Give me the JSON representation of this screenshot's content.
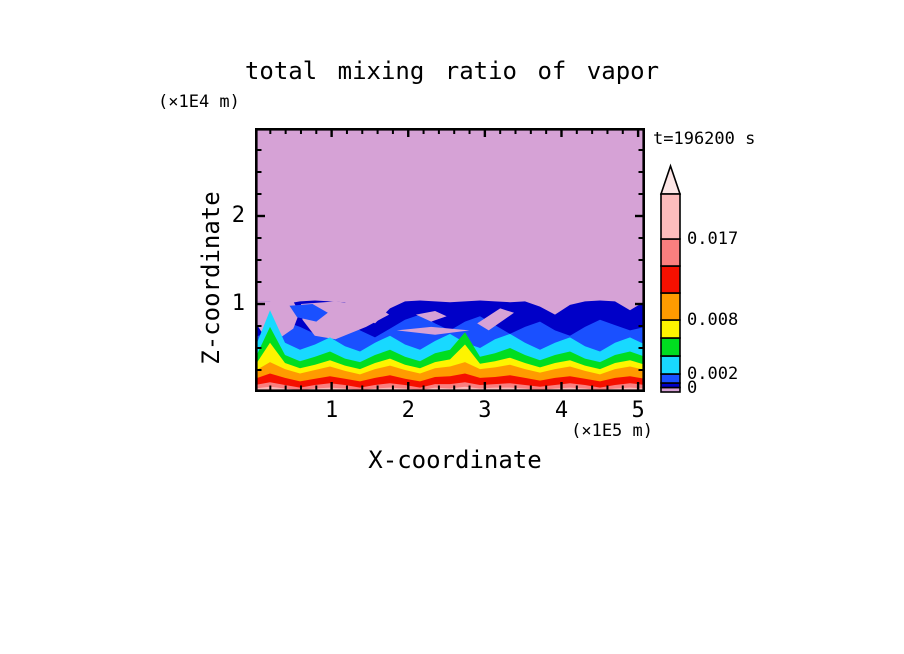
{
  "header": {
    "title": "total mixing ratio of vapor",
    "time_annotation": "t=196200 s"
  },
  "chart_data": {
    "type": "filled_contour",
    "title": "total mixing ratio of vapor",
    "time": "t=196200 s",
    "x_axis": {
      "label": "X-coordinate",
      "unit": "(×1E5 m)",
      "range": [
        0,
        5.09
      ],
      "major_ticks": [
        1,
        2,
        3,
        4,
        5
      ],
      "minor_step": 0.2
    },
    "z_axis": {
      "label": "Z-coordinate",
      "unit": "(×1E4 m)",
      "range": [
        0,
        3.0
      ],
      "major_ticks": [
        1,
        2
      ],
      "minor_step": 0.25
    },
    "colorbar": {
      "max": 0.022,
      "levels": [
        0,
        0.0005,
        0.001,
        0.002,
        0.004,
        0.006,
        0.008,
        0.011,
        0.014,
        0.017,
        0.022
      ],
      "colors": [
        "#d6a2d6",
        "#0000c8",
        "#1a50ff",
        "#18d9ff",
        "#00dd20",
        "#fef400",
        "#ff9b00",
        "#f51000",
        "#fa7f7f",
        "#fdbcbc"
      ],
      "segment_names": [
        "violet",
        "navy",
        "blue",
        "cyan",
        "green",
        "yellow",
        "orange",
        "red",
        "salmon",
        "light-pink"
      ],
      "arrow_color": "#fde6e6",
      "labels": [
        {
          "text": "0.017",
          "value": 0.017
        },
        {
          "text": "0.008",
          "value": 0.008
        },
        {
          "text": "0.002",
          "value": 0.002
        },
        {
          "text": "0",
          "value": 0
        }
      ]
    },
    "field": {
      "background": {
        "name": "violet",
        "color": "#d6a2d6"
      },
      "bands": [
        {
          "name": "navy",
          "color": "#0000c8",
          "top": [
            1.03,
            1.03,
            1.0,
            1.03,
            1.04,
            1.03,
            1.02,
            0.88,
            0.78,
            0.95,
            1.03,
            1.04,
            1.03,
            1.02,
            1.03,
            1.04,
            1.03,
            1.02,
            1.03,
            0.97,
            0.88,
            0.99,
            1.03,
            1.04,
            1.03,
            0.93,
            1.03
          ]
        },
        {
          "name": "blue",
          "color": "#1a50ff",
          "top": [
            0.62,
            0.7,
            0.8,
            0.74,
            0.66,
            0.74,
            0.84,
            0.7,
            0.62,
            0.72,
            0.82,
            0.88,
            0.78,
            0.7,
            0.8,
            0.86,
            0.76,
            0.66,
            0.74,
            0.8,
            0.7,
            0.64,
            0.74,
            0.82,
            0.76,
            0.7,
            0.74
          ]
        },
        {
          "name": "cyan",
          "color": "#18d9ff",
          "top": [
            0.5,
            0.93,
            0.56,
            0.48,
            0.54,
            0.62,
            0.52,
            0.46,
            0.56,
            0.64,
            0.54,
            0.48,
            0.58,
            0.66,
            0.56,
            0.5,
            0.6,
            0.66,
            0.56,
            0.48,
            0.56,
            0.62,
            0.52,
            0.46,
            0.56,
            0.62,
            0.54
          ]
        },
        {
          "name": "green",
          "color": "#00dd20",
          "top": [
            0.38,
            0.74,
            0.42,
            0.35,
            0.4,
            0.46,
            0.38,
            0.34,
            0.42,
            0.48,
            0.4,
            0.35,
            0.44,
            0.48,
            0.68,
            0.4,
            0.44,
            0.5,
            0.42,
            0.36,
            0.42,
            0.46,
            0.38,
            0.34,
            0.42,
            0.46,
            0.4
          ]
        },
        {
          "name": "yellow",
          "color": "#fef400",
          "top": [
            0.3,
            0.56,
            0.33,
            0.27,
            0.31,
            0.36,
            0.3,
            0.26,
            0.33,
            0.38,
            0.31,
            0.27,
            0.34,
            0.37,
            0.54,
            0.32,
            0.35,
            0.39,
            0.33,
            0.28,
            0.33,
            0.36,
            0.3,
            0.26,
            0.33,
            0.36,
            0.31
          ]
        },
        {
          "name": "orange",
          "color": "#ff9b00",
          "top": [
            0.24,
            0.34,
            0.26,
            0.21,
            0.25,
            0.29,
            0.24,
            0.2,
            0.26,
            0.3,
            0.25,
            0.21,
            0.27,
            0.29,
            0.34,
            0.26,
            0.28,
            0.31,
            0.26,
            0.22,
            0.26,
            0.29,
            0.24,
            0.2,
            0.26,
            0.29,
            0.25
          ]
        },
        {
          "name": "red",
          "color": "#f51000",
          "top": [
            0.15,
            0.21,
            0.16,
            0.12,
            0.15,
            0.18,
            0.15,
            0.12,
            0.16,
            0.19,
            0.15,
            0.12,
            0.17,
            0.18,
            0.21,
            0.16,
            0.17,
            0.19,
            0.16,
            0.13,
            0.16,
            0.18,
            0.15,
            0.12,
            0.16,
            0.18,
            0.15
          ]
        },
        {
          "name": "salmon",
          "color": "#fa7f7f",
          "top": [
            0.08,
            0.11,
            0.08,
            0.05,
            0.08,
            0.1,
            0.08,
            0.05,
            0.08,
            0.1,
            0.08,
            0.05,
            0.09,
            0.09,
            0.11,
            0.08,
            0.09,
            0.1,
            0.08,
            0.06,
            0.08,
            0.1,
            0.08,
            0.05,
            0.08,
            0.1,
            0.08
          ]
        },
        {
          "name": "light-pink",
          "color": "#fdbcbc",
          "top": [
            0.04,
            0.06,
            0.04,
            0.02,
            0.04,
            0.05,
            0.04,
            0.02,
            0.04,
            0.05,
            0.04,
            0.02,
            0.05,
            0.04,
            0.06,
            0.04,
            0.05,
            0.05,
            0.04,
            0.02,
            0.04,
            0.05,
            0.04,
            0.02,
            0.04,
            0.05,
            0.04
          ]
        }
      ],
      "blobs": [
        {
          "name": "violet-intrusion-left",
          "color": "#d6a2d6",
          "points": [
            [
              0,
              1.03
            ],
            [
              0.5,
              1.03
            ],
            [
              0.58,
              0.9
            ],
            [
              0.5,
              0.72
            ],
            [
              0.3,
              0.6
            ],
            [
              0.1,
              0.66
            ],
            [
              0,
              0.8
            ]
          ]
        },
        {
          "name": "violet-intrusion-left2",
          "color": "#d6a2d6",
          "points": [
            [
              0.6,
              1.0
            ],
            [
              1.05,
              1.03
            ],
            [
              1.6,
              0.97
            ],
            [
              1.75,
              0.88
            ],
            [
              1.45,
              0.74
            ],
            [
              1.05,
              0.6
            ],
            [
              0.78,
              0.64
            ],
            [
              0.62,
              0.82
            ]
          ]
        },
        {
          "name": "blue-patch-left",
          "color": "#1a50ff",
          "points": [
            [
              0.45,
              0.98
            ],
            [
              0.75,
              1.0
            ],
            [
              0.95,
              0.9
            ],
            [
              0.8,
              0.8
            ],
            [
              0.55,
              0.85
            ]
          ]
        },
        {
          "name": "violet-streak-mid",
          "color": "#d6a2d6",
          "points": [
            [
              1.85,
              0.7
            ],
            [
              2.3,
              0.74
            ],
            [
              2.8,
              0.7
            ],
            [
              2.35,
              0.65
            ]
          ]
        },
        {
          "name": "violet-dot-mid",
          "color": "#d6a2d6",
          "points": [
            [
              2.1,
              0.88
            ],
            [
              2.35,
              0.92
            ],
            [
              2.5,
              0.86
            ],
            [
              2.3,
              0.8
            ]
          ]
        },
        {
          "name": "violet-streak-right",
          "color": "#d6a2d6",
          "points": [
            [
              2.9,
              0.78
            ],
            [
              3.2,
              0.95
            ],
            [
              3.38,
              0.9
            ],
            [
              3.05,
              0.7
            ]
          ]
        }
      ]
    }
  }
}
